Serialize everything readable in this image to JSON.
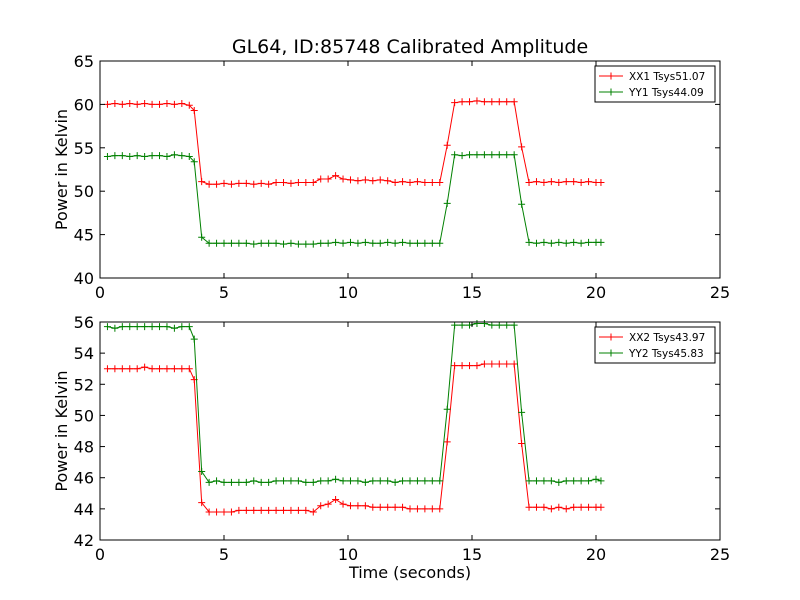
{
  "title": "GL64, ID:85748 Calibrated Amplitude",
  "colors": {
    "red": "#ff0000",
    "green": "#008000"
  },
  "chart_data": [
    {
      "type": "line",
      "ylabel": "Power in Kelvin",
      "xlabel": "",
      "xlim": [
        0,
        25
      ],
      "ylim": [
        40,
        65
      ],
      "xticks": [
        "0",
        "5",
        "10",
        "15",
        "20",
        "25"
      ],
      "yticks": [
        "40",
        "45",
        "50",
        "55",
        "60",
        "65"
      ],
      "legend_position": "top-right",
      "series": [
        {
          "name": "XX1 Tsys51.07",
          "color": "#ff0000",
          "x": [
            0.3,
            0.6,
            0.9,
            1.2,
            1.5,
            1.8,
            2.1,
            2.4,
            2.7,
            3.0,
            3.3,
            3.6,
            3.8,
            4.1,
            4.4,
            4.7,
            5.0,
            5.3,
            5.6,
            5.9,
            6.2,
            6.5,
            6.8,
            7.1,
            7.4,
            7.7,
            8.0,
            8.3,
            8.6,
            8.9,
            9.2,
            9.5,
            9.8,
            10.1,
            10.4,
            10.7,
            11.0,
            11.3,
            11.6,
            11.9,
            12.2,
            12.5,
            12.8,
            13.1,
            13.4,
            13.7,
            14.0,
            14.3,
            14.6,
            14.9,
            15.2,
            15.5,
            15.8,
            16.1,
            16.4,
            16.7,
            17.0,
            17.3,
            17.6,
            17.9,
            18.2,
            18.5,
            18.8,
            19.1,
            19.4,
            19.7,
            20.0,
            20.2
          ],
          "y": [
            60.0,
            60.1,
            60.0,
            60.1,
            60.0,
            60.1,
            60.0,
            60.0,
            60.1,
            60.0,
            60.1,
            59.9,
            59.3,
            51.1,
            50.8,
            50.8,
            50.9,
            50.8,
            50.9,
            50.9,
            50.8,
            50.9,
            50.8,
            51.0,
            51.0,
            50.9,
            51.0,
            51.0,
            51.0,
            51.4,
            51.4,
            51.8,
            51.4,
            51.3,
            51.2,
            51.3,
            51.2,
            51.3,
            51.2,
            51.0,
            51.1,
            51.0,
            51.1,
            51.0,
            51.0,
            51.0,
            55.3,
            60.2,
            60.3,
            60.3,
            60.4,
            60.3,
            60.3,
            60.3,
            60.3,
            60.3,
            55.1,
            51.0,
            51.1,
            51.0,
            51.1,
            51.0,
            51.1,
            51.1,
            51.0,
            51.1,
            51.0,
            51.0
          ]
        },
        {
          "name": "YY1 Tsys44.09",
          "color": "#008000",
          "x": [
            0.3,
            0.6,
            0.9,
            1.2,
            1.5,
            1.8,
            2.1,
            2.4,
            2.7,
            3.0,
            3.3,
            3.6,
            3.8,
            4.1,
            4.4,
            4.7,
            5.0,
            5.3,
            5.6,
            5.9,
            6.2,
            6.5,
            6.8,
            7.1,
            7.4,
            7.7,
            8.0,
            8.3,
            8.6,
            8.9,
            9.2,
            9.5,
            9.8,
            10.1,
            10.4,
            10.7,
            11.0,
            11.3,
            11.6,
            11.9,
            12.2,
            12.5,
            12.8,
            13.1,
            13.4,
            13.7,
            14.0,
            14.3,
            14.6,
            14.9,
            15.2,
            15.5,
            15.8,
            16.1,
            16.4,
            16.7,
            17.0,
            17.3,
            17.6,
            17.9,
            18.2,
            18.5,
            18.8,
            19.1,
            19.4,
            19.7,
            20.0,
            20.2
          ],
          "y": [
            54.0,
            54.1,
            54.1,
            54.0,
            54.1,
            54.0,
            54.1,
            54.1,
            54.0,
            54.2,
            54.1,
            54.0,
            53.4,
            44.7,
            44.0,
            44.0,
            44.0,
            44.0,
            44.0,
            44.0,
            43.9,
            44.0,
            44.0,
            44.0,
            43.9,
            44.0,
            43.9,
            43.9,
            43.9,
            44.0,
            44.0,
            44.1,
            44.0,
            44.1,
            44.0,
            44.1,
            44.0,
            44.0,
            44.1,
            44.0,
            44.1,
            44.0,
            44.0,
            44.0,
            44.0,
            44.0,
            48.6,
            54.2,
            54.1,
            54.2,
            54.2,
            54.2,
            54.2,
            54.2,
            54.2,
            54.2,
            48.5,
            44.1,
            44.0,
            44.1,
            44.0,
            44.1,
            44.0,
            44.1,
            44.0,
            44.1,
            44.1,
            44.1
          ]
        }
      ]
    },
    {
      "type": "line",
      "ylabel": "Power in Kelvin",
      "xlabel": "Time (seconds)",
      "xlim": [
        0,
        25
      ],
      "ylim": [
        42,
        56
      ],
      "xticks": [
        "0",
        "5",
        "10",
        "15",
        "20",
        "25"
      ],
      "yticks": [
        "42",
        "44",
        "46",
        "48",
        "50",
        "52",
        "54",
        "56"
      ],
      "legend_position": "top-right",
      "series": [
        {
          "name": "XX2 Tsys43.97",
          "color": "#ff0000",
          "x": [
            0.3,
            0.6,
            0.9,
            1.2,
            1.5,
            1.8,
            2.1,
            2.4,
            2.7,
            3.0,
            3.3,
            3.6,
            3.8,
            4.1,
            4.4,
            4.7,
            5.0,
            5.3,
            5.6,
            5.9,
            6.2,
            6.5,
            6.8,
            7.1,
            7.4,
            7.7,
            8.0,
            8.3,
            8.6,
            8.9,
            9.2,
            9.5,
            9.8,
            10.1,
            10.4,
            10.7,
            11.0,
            11.3,
            11.6,
            11.9,
            12.2,
            12.5,
            12.8,
            13.1,
            13.4,
            13.7,
            14.0,
            14.3,
            14.6,
            14.9,
            15.2,
            15.5,
            15.8,
            16.1,
            16.4,
            16.7,
            17.0,
            17.3,
            17.6,
            17.9,
            18.2,
            18.5,
            18.8,
            19.1,
            19.4,
            19.7,
            20.0,
            20.2
          ],
          "y": [
            53.0,
            53.0,
            53.0,
            53.0,
            53.0,
            53.1,
            53.0,
            53.0,
            53.0,
            53.0,
            53.0,
            53.0,
            52.3,
            44.4,
            43.8,
            43.8,
            43.8,
            43.8,
            43.9,
            43.9,
            43.9,
            43.9,
            43.9,
            43.9,
            43.9,
            43.9,
            43.9,
            43.9,
            43.8,
            44.2,
            44.3,
            44.6,
            44.3,
            44.2,
            44.2,
            44.2,
            44.1,
            44.1,
            44.1,
            44.1,
            44.1,
            44.0,
            44.0,
            44.0,
            44.0,
            44.0,
            48.3,
            53.2,
            53.2,
            53.2,
            53.2,
            53.3,
            53.3,
            53.3,
            53.3,
            53.3,
            48.2,
            44.1,
            44.1,
            44.1,
            44.0,
            44.1,
            44.0,
            44.1,
            44.1,
            44.1,
            44.1,
            44.1
          ]
        },
        {
          "name": "YY2 Tsys45.83",
          "color": "#008000",
          "x": [
            0.3,
            0.6,
            0.9,
            1.2,
            1.5,
            1.8,
            2.1,
            2.4,
            2.7,
            3.0,
            3.3,
            3.6,
            3.8,
            4.1,
            4.4,
            4.7,
            5.0,
            5.3,
            5.6,
            5.9,
            6.2,
            6.5,
            6.8,
            7.1,
            7.4,
            7.7,
            8.0,
            8.3,
            8.6,
            8.9,
            9.2,
            9.5,
            9.8,
            10.1,
            10.4,
            10.7,
            11.0,
            11.3,
            11.6,
            11.9,
            12.2,
            12.5,
            12.8,
            13.1,
            13.4,
            13.7,
            14.0,
            14.3,
            14.6,
            14.9,
            15.2,
            15.5,
            15.8,
            16.1,
            16.4,
            16.7,
            17.0,
            17.3,
            17.6,
            17.9,
            18.2,
            18.5,
            18.8,
            19.1,
            19.4,
            19.7,
            20.0,
            20.2
          ],
          "y": [
            55.7,
            55.6,
            55.7,
            55.7,
            55.7,
            55.7,
            55.7,
            55.7,
            55.7,
            55.6,
            55.7,
            55.7,
            54.9,
            46.4,
            45.7,
            45.8,
            45.7,
            45.7,
            45.7,
            45.7,
            45.8,
            45.7,
            45.7,
            45.8,
            45.8,
            45.8,
            45.8,
            45.7,
            45.7,
            45.8,
            45.8,
            45.9,
            45.8,
            45.8,
            45.8,
            45.7,
            45.8,
            45.8,
            45.8,
            45.7,
            45.8,
            45.8,
            45.8,
            45.8,
            45.8,
            45.8,
            50.4,
            55.8,
            55.8,
            55.8,
            55.9,
            55.9,
            55.8,
            55.8,
            55.8,
            55.8,
            50.2,
            45.8,
            45.8,
            45.8,
            45.8,
            45.7,
            45.8,
            45.8,
            45.8,
            45.8,
            45.9,
            45.8
          ]
        }
      ]
    }
  ]
}
